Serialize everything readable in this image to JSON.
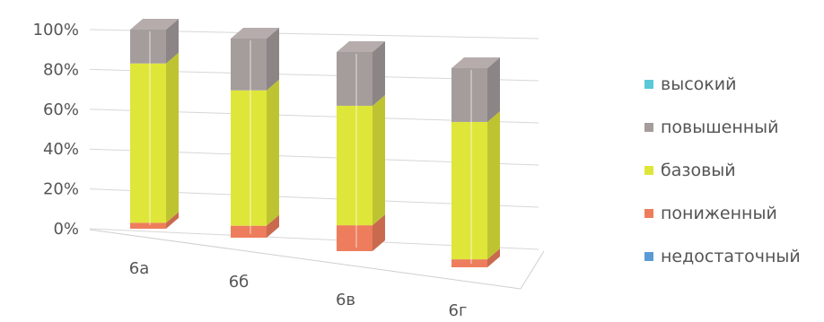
{
  "chart_data": {
    "type": "bar",
    "stacked": true,
    "percent": true,
    "style": "3d-column",
    "categories": [
      "6а",
      "6б",
      "6в",
      "6г"
    ],
    "series": [
      {
        "name": "недостаточный",
        "values": [
          0,
          0,
          0,
          0
        ],
        "color": "#5b9bd5"
      },
      {
        "name": "пониженный",
        "values": [
          3,
          6,
          13,
          4
        ],
        "color": "#ed7d5c"
      },
      {
        "name": "базовый",
        "values": [
          80,
          68,
          60,
          69
        ],
        "color": "#dfe63a"
      },
      {
        "name": "повышенный",
        "values": [
          17,
          26,
          27,
          27
        ],
        "color": "#a59c9c"
      },
      {
        "name": "высокий",
        "values": [
          0,
          0,
          0,
          0
        ],
        "color": "#5bc8d8"
      }
    ],
    "yticks": [
      "0%",
      "20%",
      "40%",
      "60%",
      "80%",
      "100%"
    ],
    "ylim": [
      0,
      100
    ],
    "grid": true,
    "legend": "right"
  },
  "legend_order": [
    "высокий",
    "повышенный",
    "базовый",
    "пониженный",
    "недостаточный"
  ]
}
